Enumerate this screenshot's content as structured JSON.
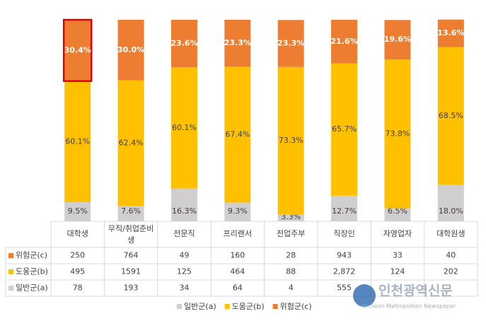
{
  "chart_data": {
    "type": "stacked-bar-percent",
    "categories": [
      "대학생",
      "무직/취업준비생",
      "전문직",
      "프리랜서",
      "전업주부",
      "직장인",
      "자영업자",
      "대학원생"
    ],
    "series": [
      {
        "name": "일반군(a)",
        "color": "#d0cece",
        "values": [
          9.5,
          7.6,
          16.3,
          9.3,
          3.3,
          12.7,
          6.5,
          18.0
        ],
        "value_labels": [
          "9.5%",
          "7.6%",
          "16.3%",
          "9.3%",
          "3.3%",
          "12.7%",
          "6.5%",
          "18.0%"
        ]
      },
      {
        "name": "도움군(b)",
        "color": "#ffc000",
        "values": [
          60.1,
          62.4,
          60.1,
          67.4,
          73.3,
          65.7,
          73.8,
          68.5
        ],
        "value_labels": [
          "60.1%",
          "62.4%",
          "60.1%",
          "67.4%",
          "73.3%",
          "65.7%",
          "73.8%",
          "68.5%"
        ]
      },
      {
        "name": "위험군(c)",
        "color": "#ed7d31",
        "values": [
          30.4,
          30.0,
          23.6,
          23.3,
          23.3,
          21.6,
          19.6,
          13.6
        ],
        "value_labels": [
          "30.4%",
          "30.0%",
          "23.6%",
          "23.3%",
          "23.3%",
          "21.6%",
          "19.6%",
          "13.6%"
        ]
      }
    ],
    "ylim": [
      0,
      100
    ],
    "highlight": {
      "series": 2,
      "index": 0,
      "color": "#e00000"
    },
    "table": {
      "rows": [
        {
          "name": "위험군(c)",
          "color": "#ed7d31",
          "values": [
            250,
            764,
            49,
            160,
            28,
            943,
            33,
            40
          ]
        },
        {
          "name": "도움군(b)",
          "color": "#ffc000",
          "values": [
            495,
            1591,
            125,
            464,
            88,
            2872,
            124,
            202
          ],
          "value_labels": [
            "495",
            "1591",
            "125",
            "464",
            "88",
            "2,872",
            "124",
            "202"
          ]
        },
        {
          "name": "일반군(a)",
          "color": "#d0cece",
          "values": [
            78,
            193,
            34,
            64,
            4,
            555,
            null,
            null
          ]
        }
      ]
    },
    "watermark": [
      "인천광역신문",
      "Incheon Metropolitan Newspaper"
    ]
  }
}
